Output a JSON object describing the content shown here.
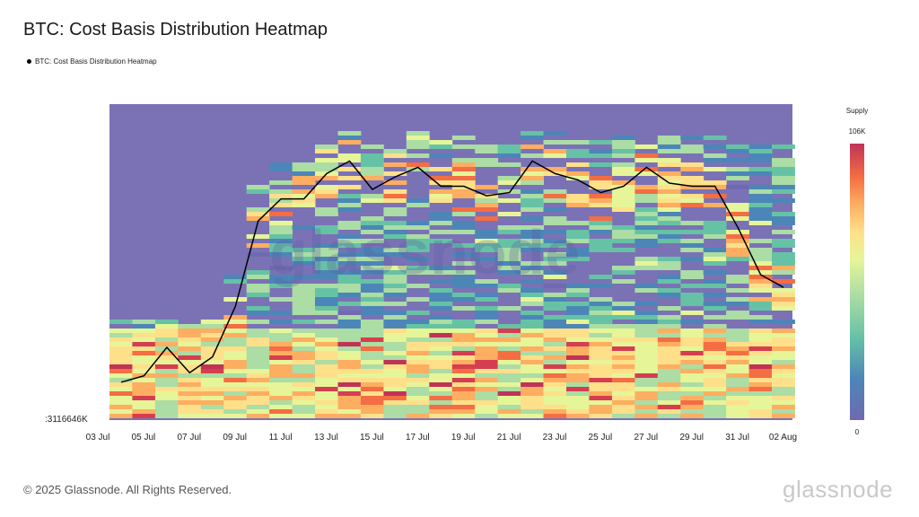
{
  "title": "BTC: Cost Basis Distribution Heatmap",
  "legend_label": "BTC: Cost Basis Distribution Heatmap",
  "footer": "© 2025 Glassnode. All Rights Reserved.",
  "brand": "glassnode",
  "colors": {
    "background_cell": "#7b72b5",
    "line": "#000000",
    "scale": [
      "#6f6ab0",
      "#4c86b8",
      "#66c2a5",
      "#abdda4",
      "#e6f598",
      "#fee08b",
      "#fdae61",
      "#f46d43",
      "#d53e4f",
      "#c03357"
    ]
  },
  "chart_data": {
    "type": "heatmap",
    "title": "BTC: Cost Basis Distribution Heatmap",
    "x_ticks": [
      "03 Jul",
      "05 Jul",
      "07 Jul",
      "09 Jul",
      "11 Jul",
      "13 Jul",
      "15 Jul",
      "17 Jul",
      "19 Jul",
      "21 Jul",
      "23 Jul",
      "25 Jul",
      "27 Jul",
      "29 Jul",
      "31 Jul",
      "02 Aug"
    ],
    "y_tick_label": ":3116646K",
    "colorbar": {
      "title": "Supply",
      "max_label": "106K",
      "min_label": "0",
      "range": [
        0,
        106000
      ]
    },
    "series": [
      {
        "name": "BTC: Cost Basis Distribution Heatmap",
        "type": "line",
        "x": [
          "04 Jul",
          "05 Jul",
          "06 Jul",
          "07 Jul",
          "08 Jul",
          "09 Jul",
          "10 Jul",
          "11 Jul",
          "12 Jul",
          "13 Jul",
          "14 Jul",
          "15 Jul",
          "16 Jul",
          "17 Jul",
          "18 Jul",
          "19 Jul",
          "20 Jul",
          "21 Jul",
          "22 Jul",
          "23 Jul",
          "24 Jul",
          "25 Jul",
          "26 Jul",
          "27 Jul",
          "28 Jul",
          "29 Jul",
          "30 Jul",
          "31 Jul",
          "01 Aug",
          "02 Aug"
        ],
        "y_relative": [
          0.12,
          0.14,
          0.23,
          0.15,
          0.2,
          0.36,
          0.63,
          0.7,
          0.7,
          0.78,
          0.82,
          0.73,
          0.77,
          0.8,
          0.74,
          0.74,
          0.71,
          0.72,
          0.82,
          0.78,
          0.76,
          0.72,
          0.74,
          0.8,
          0.75,
          0.74,
          0.74,
          0.61,
          0.46,
          0.42
        ]
      }
    ]
  }
}
